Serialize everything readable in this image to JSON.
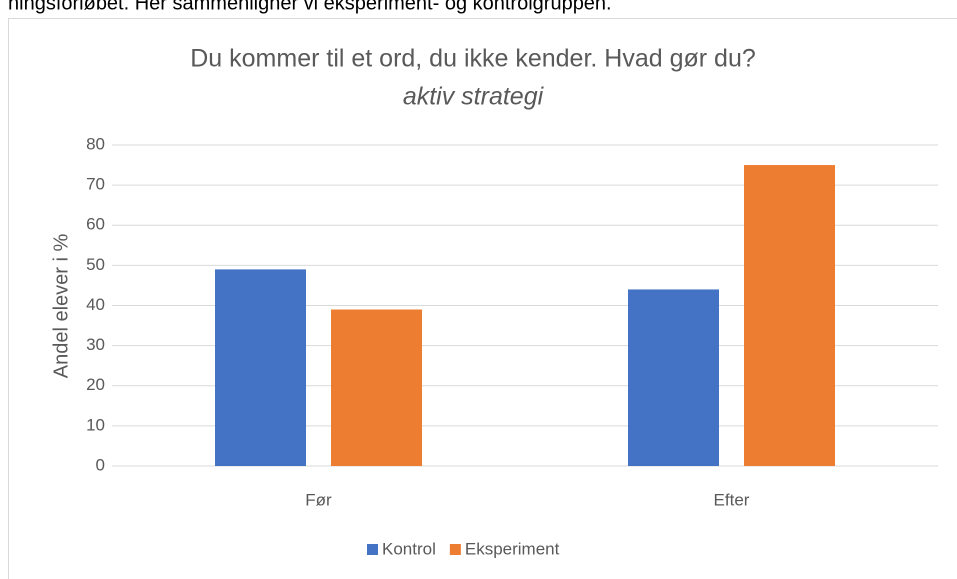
{
  "caption": "ningsforløbet. Her sammenligner vi eksperiment- og kontrolgruppen.",
  "chart_data": {
    "type": "bar",
    "title": "Du kommer til et ord, du ikke kender. Hvad gør du?",
    "subtitle": "aktiv strategi",
    "ylabel": "Andel elever i %",
    "categories": [
      "Før",
      "Efter"
    ],
    "series": [
      {
        "name": "Kontrol",
        "color": "#4472c4",
        "values": [
          49,
          44
        ]
      },
      {
        "name": "Eksperiment",
        "color": "#ed7d31",
        "values": [
          39,
          75
        ]
      }
    ],
    "ylim": [
      0,
      80
    ],
    "yticks": [
      0,
      10,
      20,
      30,
      40,
      50,
      60,
      70,
      80
    ],
    "grid": true,
    "legend": "bottom"
  }
}
